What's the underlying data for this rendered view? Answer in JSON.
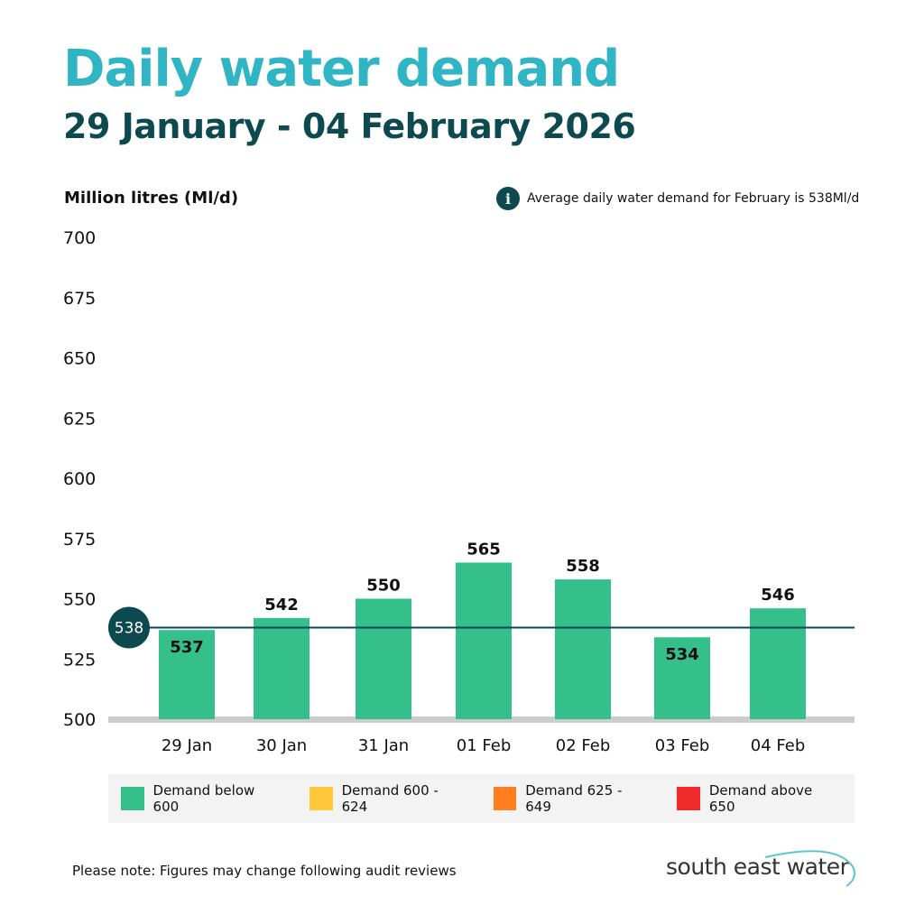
{
  "header": {
    "title": "Daily water demand",
    "subtitle": "29  January - 04 February 2026"
  },
  "info_note": {
    "icon": "info-icon",
    "text": "Average daily water demand for February  is 538Ml/d"
  },
  "chart_data": {
    "type": "bar",
    "ylabel": "Million litres (Ml/d)",
    "ylim": [
      500,
      700
    ],
    "yticks": [
      "700",
      "675",
      "650",
      "625",
      "600",
      "575",
      "550",
      "525",
      "500"
    ],
    "categories": [
      "29  Jan",
      "30 Jan",
      "31 Jan",
      "01 Feb",
      "02 Feb",
      "03 Feb",
      "04 Feb"
    ],
    "values": [
      537,
      542,
      550,
      565,
      558,
      534,
      546
    ],
    "data_labels": [
      "537",
      "542",
      "550",
      "565",
      "558",
      "534",
      "546"
    ],
    "reference_line": {
      "value": 538,
      "label": "538",
      "color": "#0d4a4f"
    },
    "bar_color": "#35bf8a",
    "grid": false,
    "legend_position": "bottom",
    "legend": [
      {
        "label": "Demand below 600",
        "color": "#35bf8a"
      },
      {
        "label": "Demand 600 - 624",
        "color": "#ffc83a"
      },
      {
        "label": "Demand 625 - 649",
        "color": "#ff7f1e"
      },
      {
        "label": "Demand above 650",
        "color": "#ee2a2a"
      }
    ]
  },
  "footer": {
    "note": "Please note: Figures may change following audit reviews",
    "logo": "south east water"
  }
}
